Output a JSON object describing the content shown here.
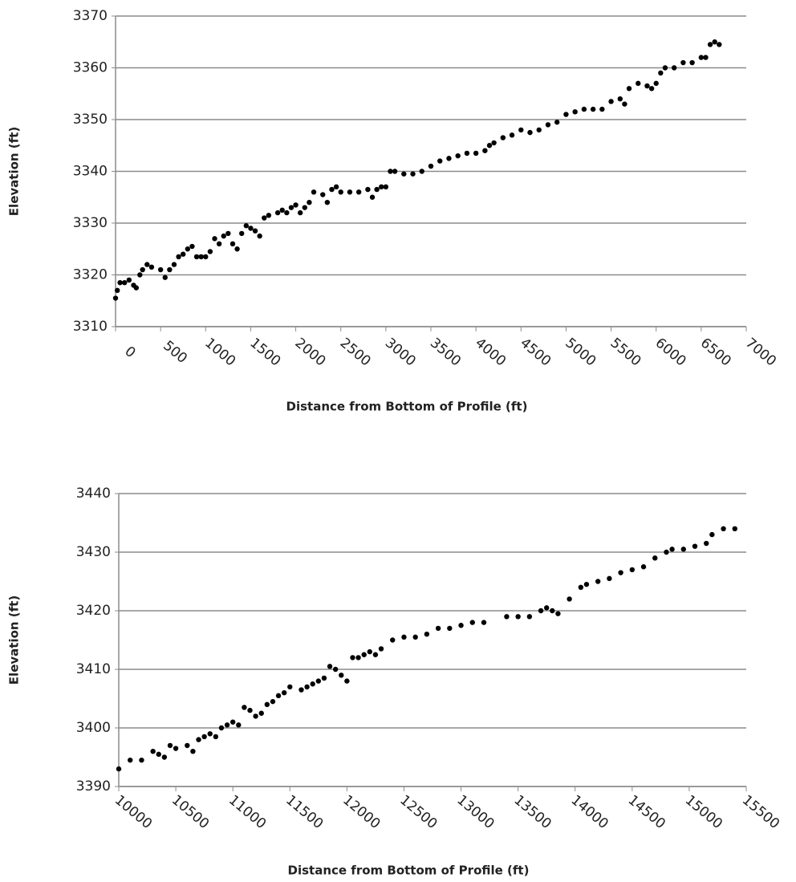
{
  "chart_data": [
    {
      "type": "scatter",
      "x_label": "Distance from Bottom of Profile (ft)",
      "y_label": "Elevation (ft)",
      "color": "#000000",
      "grid": true,
      "xlim": [
        0,
        7000
      ],
      "ylim": [
        3310,
        3370
      ],
      "xticks": [
        0,
        500,
        1000,
        1500,
        2000,
        2500,
        3000,
        3500,
        4000,
        4500,
        5000,
        5500,
        6000,
        6500,
        7000
      ],
      "yticks": [
        3310,
        3320,
        3330,
        3340,
        3350,
        3360,
        3370
      ],
      "x": [
        0,
        20,
        50,
        100,
        150,
        200,
        230,
        270,
        300,
        350,
        400,
        500,
        550,
        600,
        650,
        700,
        750,
        800,
        850,
        900,
        950,
        1000,
        1050,
        1100,
        1150,
        1200,
        1250,
        1300,
        1350,
        1400,
        1450,
        1500,
        1550,
        1600,
        1650,
        1700,
        1800,
        1850,
        1900,
        1950,
        2000,
        2050,
        2100,
        2150,
        2200,
        2300,
        2350,
        2400,
        2450,
        2500,
        2600,
        2700,
        2800,
        2850,
        2900,
        2950,
        3000,
        3050,
        3100,
        3200,
        3300,
        3400,
        3500,
        3600,
        3700,
        3800,
        3900,
        4000,
        4100,
        4150,
        4200,
        4300,
        4400,
        4500,
        4600,
        4700,
        4800,
        4900,
        5000,
        5100,
        5200,
        5300,
        5400,
        5500,
        5600,
        5650,
        5700,
        5800,
        5900,
        5950,
        6000,
        6050,
        6100,
        6200,
        6300,
        6400,
        6500,
        6550,
        6600,
        6650,
        6700
      ],
      "values": [
        3315.5,
        3317,
        3318.5,
        3318.5,
        3319,
        3318,
        3317.5,
        3320,
        3321,
        3322,
        3321.5,
        3321,
        3319.5,
        3321,
        3322,
        3323.5,
        3324,
        3325,
        3325.5,
        3323.5,
        3323.5,
        3323.5,
        3324.5,
        3327,
        3326,
        3327.5,
        3328,
        3326,
        3325,
        3328,
        3329.5,
        3329,
        3328.5,
        3327.5,
        3331,
        3331.5,
        3332,
        3332.5,
        3332,
        3333,
        3333.5,
        3332,
        3333,
        3334,
        3336,
        3335.5,
        3334,
        3336.5,
        3337,
        3336,
        3336,
        3336,
        3336.5,
        3335,
        3336.5,
        3337,
        3337,
        3340,
        3340,
        3339.5,
        3339.5,
        3340,
        3341,
        3342,
        3342.5,
        3343,
        3343.5,
        3343.5,
        3344,
        3345,
        3345.5,
        3346.5,
        3347,
        3348,
        3347.5,
        3348,
        3349,
        3349.5,
        3351,
        3351.5,
        3352,
        3352,
        3352,
        3353.5,
        3354,
        3353,
        3356,
        3357,
        3356.5,
        3356,
        3357,
        3359,
        3360,
        3360,
        3361,
        3361,
        3362,
        3362,
        3364.5,
        3365,
        3364.5
      ]
    },
    {
      "type": "scatter",
      "x_label": "Distance from Bottom of Profile (ft)",
      "y_label": "Elevation (ft)",
      "color": "#000000",
      "grid": true,
      "xlim": [
        10000,
        15500
      ],
      "ylim": [
        3390,
        3440
      ],
      "xticks": [
        10000,
        10500,
        11000,
        11500,
        12000,
        12500,
        13000,
        13500,
        14000,
        14500,
        15000,
        15500
      ],
      "yticks": [
        3390,
        3400,
        3410,
        3420,
        3430,
        3440
      ],
      "x": [
        10000,
        10100,
        10200,
        10300,
        10350,
        10400,
        10450,
        10500,
        10600,
        10650,
        10700,
        10750,
        10800,
        10850,
        10900,
        10950,
        11000,
        11050,
        11100,
        11150,
        11200,
        11250,
        11300,
        11350,
        11400,
        11450,
        11500,
        11600,
        11650,
        11700,
        11750,
        11800,
        11850,
        11900,
        11950,
        12000,
        12050,
        12100,
        12150,
        12200,
        12250,
        12300,
        12400,
        12500,
        12600,
        12700,
        12800,
        12900,
        13000,
        13100,
        13200,
        13400,
        13500,
        13600,
        13700,
        13750,
        13800,
        13850,
        13950,
        14050,
        14100,
        14200,
        14300,
        14400,
        14500,
        14600,
        14700,
        14800,
        14850,
        14950,
        15050,
        15150,
        15200,
        15300,
        15400
      ],
      "values": [
        3393,
        3394.5,
        3394.5,
        3396,
        3395.5,
        3395,
        3397,
        3396.5,
        3397,
        3396,
        3398,
        3398.5,
        3399,
        3398.5,
        3400,
        3400.5,
        3401,
        3400.5,
        3403.5,
        3403,
        3402,
        3402.5,
        3404,
        3404.5,
        3405.5,
        3406,
        3407,
        3406.5,
        3407,
        3407.5,
        3408,
        3408.5,
        3410.5,
        3410,
        3409,
        3408,
        3412,
        3412,
        3412.5,
        3413,
        3412.5,
        3413.5,
        3415,
        3415.5,
        3415.5,
        3416,
        3417,
        3417,
        3417.5,
        3418,
        3418,
        3419,
        3419,
        3419,
        3420,
        3420.5,
        3420,
        3419.5,
        3422,
        3424,
        3424.5,
        3425,
        3425.5,
        3426.5,
        3427,
        3427.5,
        3429,
        3430,
        3430.5,
        3430.5,
        3431,
        3431.5,
        3433,
        3434,
        3434
      ]
    }
  ]
}
